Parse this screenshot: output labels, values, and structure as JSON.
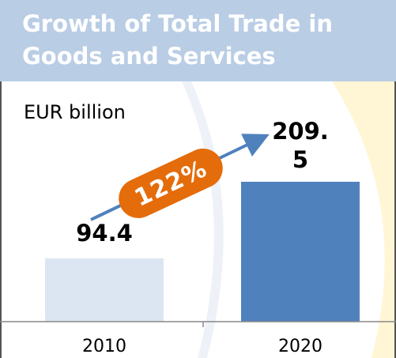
{
  "chart_data": {
    "type": "bar",
    "title": "Growth of Total Trade in Goods and Services",
    "unit_label": "EUR billion",
    "annotation": "122%",
    "categories": [
      "2010",
      "2020"
    ],
    "values": [
      94.4,
      209.5
    ],
    "colors": [
      "#dce6f2",
      "#4f81bd"
    ]
  }
}
